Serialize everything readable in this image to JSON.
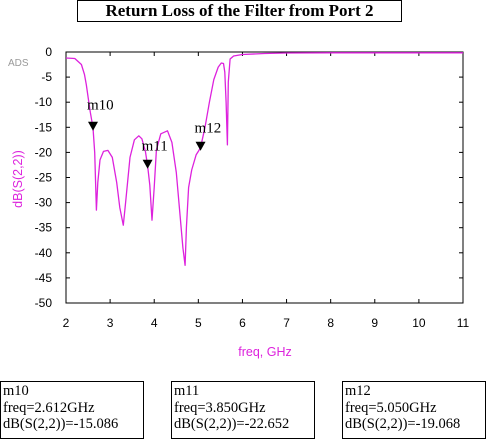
{
  "title": "Return Loss of the Filter from Port 2",
  "watermark": "ADS",
  "colors": {
    "trace": "#dd22dd",
    "axis": "#000000",
    "label": "#dd22dd"
  },
  "chart_data": {
    "type": "line",
    "xlabel": "freq, GHz",
    "ylabel": "dB(S(2,2))",
    "xlim": [
      2,
      11
    ],
    "ylim": [
      -50,
      0
    ],
    "xticks": [
      2,
      3,
      4,
      5,
      6,
      7,
      8,
      9,
      10,
      11
    ],
    "yticks": [
      0,
      -5,
      -10,
      -15,
      -20,
      -25,
      -30,
      -35,
      -40,
      -45,
      -50
    ],
    "grid": false,
    "legend": "none",
    "series": [
      {
        "color": "#dd22dd",
        "x": [
          2.0,
          2.2,
          2.35,
          2.42,
          2.46,
          2.5,
          2.55,
          2.6,
          2.612,
          2.65,
          2.69,
          2.72,
          2.77,
          2.85,
          2.95,
          3.05,
          3.15,
          3.22,
          3.3,
          3.35,
          3.45,
          3.55,
          3.65,
          3.72,
          3.8,
          3.85,
          3.9,
          3.95,
          4.0,
          4.05,
          4.15,
          4.3,
          4.4,
          4.5,
          4.6,
          4.65,
          4.7,
          4.73,
          4.78,
          4.85,
          4.95,
          5.0,
          5.05,
          5.15,
          5.25,
          5.35,
          5.45,
          5.52,
          5.57,
          5.6,
          5.63,
          5.66,
          5.68,
          5.72,
          5.8,
          6.0,
          6.5,
          7.0,
          8.0,
          9.0,
          10.0,
          11.0
        ],
        "y": [
          -1.2,
          -1.3,
          -2.5,
          -4.5,
          -6.5,
          -9.0,
          -12.0,
          -14.5,
          -15.086,
          -20.0,
          -31.5,
          -26.0,
          -21.5,
          -19.8,
          -19.6,
          -21.0,
          -26.0,
          -31.0,
          -34.5,
          -30.0,
          -21.0,
          -17.5,
          -16.7,
          -17.3,
          -19.8,
          -22.652,
          -26.5,
          -33.5,
          -27.0,
          -19.5,
          -16.3,
          -15.7,
          -18.0,
          -24.0,
          -34.0,
          -39.0,
          -42.5,
          -35.0,
          -27.0,
          -23.5,
          -20.5,
          -19.8,
          -19.068,
          -15.0,
          -10.0,
          -5.5,
          -3.0,
          -2.2,
          -2.3,
          -4.0,
          -10.0,
          -18.5,
          -6.0,
          -1.4,
          -0.8,
          -0.5,
          -0.3,
          -0.2,
          -0.15,
          -0.15,
          -0.15,
          -0.15
        ]
      }
    ],
    "markers": [
      {
        "name": "m10",
        "x": 2.612,
        "y": -15.086,
        "label_dx": -6,
        "label_dy": -18
      },
      {
        "name": "m11",
        "x": 3.85,
        "y": -22.652,
        "label_dx": -6,
        "label_dy": -15
      },
      {
        "name": "m12",
        "x": 5.05,
        "y": -19.068,
        "label_dx": -6,
        "label_dy": -15
      }
    ]
  },
  "marker_boxes": [
    {
      "name": "m10",
      "freq": "freq=2.612GHz",
      "value": "dB(S(2,2))=-15.086"
    },
    {
      "name": "m11",
      "freq": "freq=3.850GHz",
      "value": "dB(S(2,2))=-22.652"
    },
    {
      "name": "m12",
      "freq": "freq=5.050GHz",
      "value": "dB(S(2,2))=-19.068"
    }
  ]
}
